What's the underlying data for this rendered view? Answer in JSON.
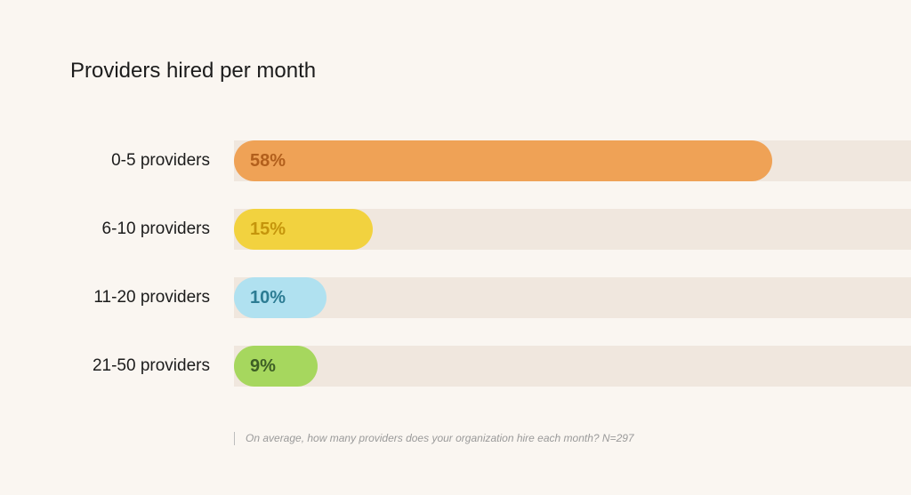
{
  "chart_data": {
    "type": "bar",
    "orientation": "horizontal",
    "title": "Providers hired per month",
    "categories": [
      "0-5 providers",
      "6-10 providers",
      "11-20 providers",
      "21-50 providers"
    ],
    "values": [
      58,
      15,
      10,
      9
    ],
    "value_labels": [
      "58%",
      "15%",
      "10%",
      "9%"
    ],
    "unit": "%",
    "xlim": [
      0,
      73
    ],
    "bar_colors": [
      "#efa256",
      "#f2d23f",
      "#b0e1f0",
      "#a6d75e"
    ],
    "label_colors": [
      "#b25f1c",
      "#c5950c",
      "#2c7c93",
      "#3d5e25"
    ],
    "track_color": "#f0e7de",
    "grid": false,
    "legend": "none",
    "footnote": "On average, how many providers does your organization hire each month? N=297"
  }
}
